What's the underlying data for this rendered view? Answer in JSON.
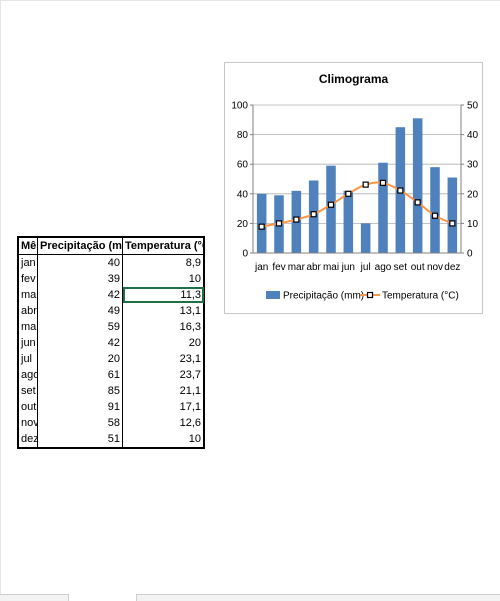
{
  "table": {
    "headers": [
      "Mês",
      "Precipitação (mm)",
      "Temperatura (°C)"
    ],
    "rows": [
      [
        "jan",
        "40",
        "8,9"
      ],
      [
        "fev",
        "39",
        "10"
      ],
      [
        "mar",
        "42",
        "11,3"
      ],
      [
        "abr",
        "49",
        "13,1"
      ],
      [
        "mai",
        "59",
        "16,3"
      ],
      [
        "jun",
        "42",
        "20"
      ],
      [
        "jul",
        "20",
        "23,1"
      ],
      [
        "ago",
        "61",
        "23,7"
      ],
      [
        "set",
        "85",
        "21,1"
      ],
      [
        "out",
        "91",
        "17,1"
      ],
      [
        "nov",
        "58",
        "12,6"
      ],
      [
        "dez",
        "51",
        "10"
      ]
    ]
  },
  "chart_data": {
    "type": "bar",
    "title": "Climograma",
    "categories": [
      "jan",
      "fev",
      "mar",
      "abr",
      "mai",
      "jun",
      "jul",
      "ago",
      "set",
      "out",
      "nov",
      "dez"
    ],
    "series": [
      {
        "name": "Precipitação (mm)",
        "type": "bar",
        "axis": "left",
        "values": [
          40,
          39,
          42,
          49,
          59,
          42,
          20,
          61,
          85,
          91,
          58,
          51
        ],
        "color": "#4f81bd"
      },
      {
        "name": "Temperatura (°C)",
        "type": "line",
        "axis": "right",
        "values": [
          8.9,
          10,
          11.3,
          13.1,
          16.3,
          20,
          23.1,
          23.7,
          21.1,
          17.1,
          12.6,
          10
        ],
        "color": "#f79646"
      }
    ],
    "ylim_left": [
      0,
      100
    ],
    "yticks_left": [
      "0",
      "20",
      "40",
      "60",
      "80",
      "100"
    ],
    "ylim_right": [
      0,
      50
    ],
    "yticks_right": [
      "0",
      "10",
      "20",
      "30",
      "40",
      "50"
    ],
    "grid": true,
    "legend": "bottom"
  }
}
